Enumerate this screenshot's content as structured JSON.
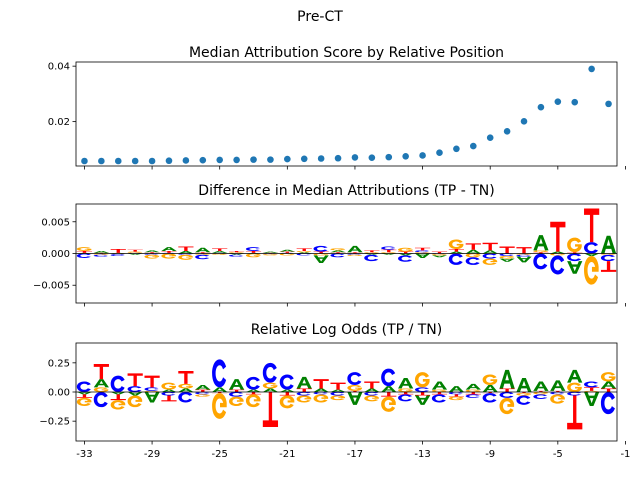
{
  "figure": {
    "suptitle": "Pre-CT"
  },
  "colors": {
    "A": "#008000",
    "C": "#0000ff",
    "G": "#ffa500",
    "T": "#ff0000",
    "scatter": "#1f77b4"
  },
  "chart_data": [
    {
      "type": "scatter",
      "title": "Median Attribution Score by Relative Position",
      "x": [
        -33,
        -32,
        -31,
        -30,
        -29,
        -28,
        -27,
        -26,
        -25,
        -24,
        -23,
        -22,
        -21,
        -20,
        -19,
        -18,
        -17,
        -16,
        -15,
        -14,
        -13,
        -12,
        -11,
        -10,
        -9,
        -8,
        -7,
        -6,
        -5,
        -4,
        -3,
        -2
      ],
      "y": [
        0.0058,
        0.0058,
        0.0058,
        0.0058,
        0.0058,
        0.0059,
        0.006,
        0.0061,
        0.0062,
        0.0062,
        0.0063,
        0.0063,
        0.0065,
        0.0066,
        0.0067,
        0.0068,
        0.0071,
        0.007,
        0.0072,
        0.0075,
        0.0078,
        0.0088,
        0.0102,
        0.0112,
        0.0142,
        0.0165,
        0.0201,
        0.0252,
        0.0272,
        0.027,
        0.039,
        0.0264
      ],
      "xlim": [
        -33.5,
        -1.5
      ],
      "ylim": [
        0.004,
        0.0415
      ],
      "yticks": [
        0.02,
        0.04
      ],
      "yticklabels": [
        "0.02",
        "0.04"
      ]
    },
    {
      "type": "logo",
      "title": "Difference in Median Attributions (TP - TN)",
      "xlim": [
        -33.5,
        -1.5
      ],
      "ylim": [
        -0.0078,
        0.0078
      ],
      "yticks": [
        -0.005,
        0.0,
        0.005
      ],
      "yticklabels": [
        "−0.005",
        "0.000",
        "0.005"
      ],
      "positions": [
        {
          "x": -33,
          "bases": {
            "A": 0.0001,
            "C": -0.0007,
            "G": 0.0006,
            "T": 0.0003
          }
        },
        {
          "x": -32,
          "bases": {
            "A": 0.0003,
            "C": -0.0003,
            "G": -0.0002,
            "T": 0.0001
          }
        },
        {
          "x": -31,
          "bases": {
            "A": 0.0001,
            "C": -0.0003,
            "G": -0.0001,
            "T": 0.0006
          }
        },
        {
          "x": -30,
          "bases": {
            "A": -0.0002,
            "C": 0.0001,
            "G": 0.0002,
            "T": 0.0003
          }
        },
        {
          "x": -29,
          "bases": {
            "A": 0.0003,
            "C": -0.0002,
            "G": -0.0006,
            "T": 0.0002
          }
        },
        {
          "x": -28,
          "bases": {
            "A": 0.0006,
            "C": 0.0001,
            "G": -0.0008,
            "T": 0.0003
          }
        },
        {
          "x": -27,
          "bases": {
            "A": 0.0004,
            "C": -0.0002,
            "G": -0.0008,
            "T": 0.0007
          }
        },
        {
          "x": -26,
          "bases": {
            "A": 0.0007,
            "C": -0.0007,
            "G": -0.0002,
            "T": 0.0002
          }
        },
        {
          "x": -25,
          "bases": {
            "A": 0.0003,
            "C": 0.0001,
            "G": -0.0002,
            "T": 0.0004
          }
        },
        {
          "x": -24,
          "bases": {
            "A": -0.0002,
            "C": -0.0003,
            "G": 0.0002,
            "T": 0.0002
          }
        },
        {
          "x": -23,
          "bases": {
            "A": 0.0001,
            "C": 0.0006,
            "G": -0.0006,
            "T": 0.0003
          }
        },
        {
          "x": -22,
          "bases": {
            "A": 0.0002,
            "C": -0.0001,
            "G": -0.0002,
            "T": 0.0001
          }
        },
        {
          "x": -21,
          "bases": {
            "A": 0.0003,
            "C": 0.0001,
            "G": -0.0003,
            "T": 0.0002
          }
        },
        {
          "x": -20,
          "bases": {
            "A": 0.0002,
            "C": -0.0003,
            "G": 0.0002,
            "T": 0.0004
          }
        },
        {
          "x": -19,
          "bases": {
            "A": -0.0012,
            "C": 0.0009,
            "G": -0.0003,
            "T": 0.0003
          }
        },
        {
          "x": -18,
          "bases": {
            "A": 0.0003,
            "C": -0.0006,
            "G": 0.0003,
            "T": 0.0002
          }
        },
        {
          "x": -17,
          "bases": {
            "A": 0.001,
            "C": -0.0002,
            "G": -0.0002,
            "T": 0.0002
          }
        },
        {
          "x": -16,
          "bases": {
            "A": -0.0002,
            "C": -0.001,
            "G": 0.0002,
            "T": 0.0003
          }
        },
        {
          "x": -15,
          "bases": {
            "A": -0.0002,
            "C": 0.0005,
            "G": 0.0002,
            "T": 0.0004
          }
        },
        {
          "x": -14,
          "bases": {
            "A": -0.0003,
            "C": -0.001,
            "G": 0.0006,
            "T": 0.0003
          }
        },
        {
          "x": -13,
          "bases": {
            "A": -0.0007,
            "C": 0.0003,
            "G": 0.0002,
            "T": 0.0004
          }
        },
        {
          "x": -12,
          "bases": {
            "A": -0.0003,
            "C": -0.0001,
            "G": -0.0002,
            "T": 0.0003
          }
        },
        {
          "x": -11,
          "bases": {
            "A": 0.0003,
            "C": -0.0018,
            "G": 0.0015,
            "T": 0.0004
          }
        },
        {
          "x": -10,
          "bases": {
            "A": 0.0006,
            "C": -0.0012,
            "G": -0.0006,
            "T": 0.001
          }
        },
        {
          "x": -9,
          "bases": {
            "A": 0.0005,
            "C": -0.0008,
            "G": -0.001,
            "T": 0.0012
          }
        },
        {
          "x": -8,
          "bases": {
            "A": -0.0005,
            "C": -0.0004,
            "G": -0.0004,
            "T": 0.0011
          }
        },
        {
          "x": -7,
          "bases": {
            "A": -0.0009,
            "C": -0.0003,
            "G": -0.0002,
            "T": 0.001
          }
        },
        {
          "x": -6,
          "bases": {
            "A": 0.0024,
            "C": -0.0025,
            "G": 0.0003,
            "T": 0.0002
          }
        },
        {
          "x": -5,
          "bases": {
            "A": 0.0003,
            "C": -0.003,
            "G": -0.0003,
            "T": 0.0047
          }
        },
        {
          "x": -4,
          "bases": {
            "A": -0.002,
            "C": -0.0012,
            "G": 0.0023,
            "T": 0.0002
          }
        },
        {
          "x": -3,
          "bases": {
            "A": -0.0004,
            "C": 0.0018,
            "G": -0.0045,
            "T": 0.0053
          }
        },
        {
          "x": -2,
          "bases": {
            "A": 0.0028,
            "C": -0.001,
            "G": -0.0002,
            "T": -0.0017
          }
        }
      ]
    },
    {
      "type": "logo",
      "title": "Relative Log Odds (TP / TN)",
      "xlim": [
        -33.5,
        -1.5
      ],
      "ylim": [
        -0.42,
        0.42
      ],
      "yticks": [
        -0.25,
        0.0,
        0.25
      ],
      "yticklabels": [
        "−0.25",
        "0.00",
        "0.25"
      ],
      "xticks": [
        -33,
        -29,
        -25,
        -21,
        -17,
        -13,
        -9,
        -5,
        -1
      ],
      "xticklabels": [
        "-33",
        "-29",
        "-25",
        "-21",
        "-17",
        "-13",
        "-9",
        "-5",
        "-1"
      ],
      "positions": [
        {
          "x": -33,
          "bases": {
            "A": -0.02,
            "C": 0.09,
            "G": -0.07,
            "T": -0.03
          }
        },
        {
          "x": -32,
          "bases": {
            "A": 0.07,
            "C": -0.13,
            "G": 0.04,
            "T": 0.13
          }
        },
        {
          "x": -31,
          "bases": {
            "A": -0.02,
            "C": 0.14,
            "G": -0.08,
            "T": -0.05
          }
        },
        {
          "x": -30,
          "bases": {
            "A": -0.03,
            "C": 0.05,
            "G": -0.1,
            "T": 0.11
          }
        },
        {
          "x": -29,
          "bases": {
            "A": -0.09,
            "C": 0.03,
            "G": 0.01,
            "T": 0.1
          }
        },
        {
          "x": -28,
          "bases": {
            "A": 0.02,
            "C": -0.03,
            "G": 0.06,
            "T": -0.05
          }
        },
        {
          "x": -27,
          "bases": {
            "A": 0.03,
            "C": -0.09,
            "G": 0.04,
            "T": 0.11
          }
        },
        {
          "x": -26,
          "bases": {
            "A": 0.04,
            "C": -0.02,
            "G": -0.02,
            "T": 0.02
          }
        },
        {
          "x": -25,
          "bases": {
            "A": 0.04,
            "C": 0.24,
            "G": -0.22,
            "T": -0.01
          }
        },
        {
          "x": -24,
          "bases": {
            "A": 0.09,
            "C": -0.04,
            "G": -0.08,
            "T": 0.02
          }
        },
        {
          "x": -23,
          "bases": {
            "A": 0.02,
            "C": 0.11,
            "G": -0.11,
            "T": -0.02
          }
        },
        {
          "x": -22,
          "bases": {
            "A": 0.03,
            "C": 0.17,
            "G": 0.05,
            "T": -0.3
          }
        },
        {
          "x": -21,
          "bases": {
            "A": 0.02,
            "C": 0.13,
            "G": -0.11,
            "T": -0.03
          }
        },
        {
          "x": -20,
          "bases": {
            "A": 0.1,
            "C": -0.03,
            "G": -0.06,
            "T": 0.03
          }
        },
        {
          "x": -19,
          "bases": {
            "A": 0.03,
            "C": -0.02,
            "G": -0.07,
            "T": 0.08
          }
        },
        {
          "x": -18,
          "bases": {
            "A": 0.02,
            "C": -0.03,
            "G": -0.04,
            "T": 0.06
          }
        },
        {
          "x": -17,
          "bases": {
            "A": -0.11,
            "C": 0.11,
            "G": 0.05,
            "T": 0.01
          }
        },
        {
          "x": -16,
          "bases": {
            "A": 0.03,
            "C": -0.03,
            "G": -0.05,
            "T": 0.06
          }
        },
        {
          "x": -15,
          "bases": {
            "A": 0.05,
            "C": 0.15,
            "G": -0.13,
            "T": -0.04
          }
        },
        {
          "x": -14,
          "bases": {
            "A": 0.09,
            "C": -0.06,
            "G": 0.03,
            "T": -0.02
          }
        },
        {
          "x": -13,
          "bases": {
            "A": -0.08,
            "C": 0.04,
            "G": 0.13,
            "T": -0.03
          }
        },
        {
          "x": -12,
          "bases": {
            "A": 0.07,
            "C": -0.07,
            "G": 0.02,
            "T": -0.02
          }
        },
        {
          "x": -11,
          "bases": {
            "A": 0.05,
            "C": -0.02,
            "G": -0.03,
            "T": -0.02
          }
        },
        {
          "x": -10,
          "bases": {
            "A": 0.05,
            "C": -0.03,
            "G": 0.02,
            "T": -0.02
          }
        },
        {
          "x": -9,
          "bases": {
            "A": 0.06,
            "C": -0.08,
            "G": 0.09,
            "T": -0.01
          }
        },
        {
          "x": -8,
          "bases": {
            "A": 0.16,
            "C": -0.05,
            "G": -0.14,
            "T": 0.03
          }
        },
        {
          "x": -7,
          "bases": {
            "A": 0.12,
            "C": -0.08,
            "G": -0.02,
            "T": -0.01
          }
        },
        {
          "x": -6,
          "bases": {
            "A": 0.08,
            "C": -0.04,
            "G": -0.02,
            "T": 0.01
          }
        },
        {
          "x": -5,
          "bases": {
            "A": 0.09,
            "C": -0.02,
            "G": -0.08,
            "T": 0.01
          }
        },
        {
          "x": -4,
          "bases": {
            "A": 0.11,
            "C": -0.03,
            "G": 0.08,
            "T": -0.29
          }
        },
        {
          "x": -3,
          "bases": {
            "A": -0.12,
            "C": 0.05,
            "G": 0.01,
            "T": 0.03
          }
        },
        {
          "x": -2,
          "bases": {
            "A": 0.06,
            "C": -0.19,
            "G": 0.08,
            "T": 0.03
          }
        }
      ]
    }
  ]
}
